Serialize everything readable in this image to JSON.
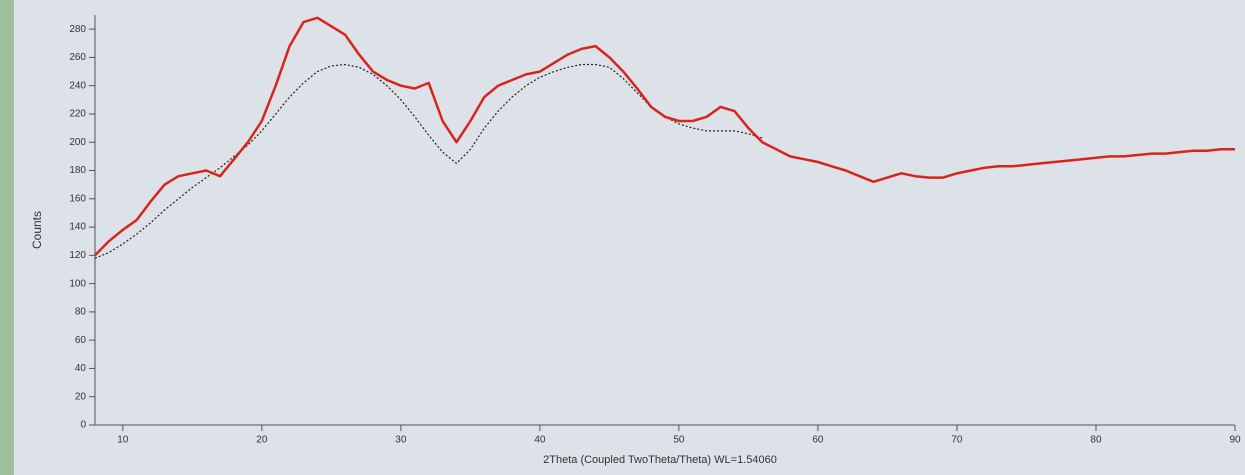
{
  "chart_data": {
    "type": "line",
    "y_label": "Counts",
    "x_label": "2Theta (Coupled TwoTheta/Theta) WL=1.54060",
    "x": [
      8,
      9,
      10,
      11,
      12,
      13,
      14,
      15,
      16,
      17,
      18,
      19,
      20,
      21,
      22,
      23,
      24,
      25,
      26,
      27,
      28,
      29,
      30,
      31,
      32,
      33,
      34,
      35,
      36,
      37,
      38,
      39,
      40,
      41,
      42,
      43,
      44,
      45,
      46,
      47,
      48,
      49,
      50,
      51,
      52,
      53,
      54,
      55,
      56,
      57,
      58,
      59,
      60,
      61,
      62,
      63,
      64,
      65,
      66,
      67,
      68,
      69,
      70,
      71,
      72,
      73,
      74,
      75,
      76,
      77,
      78,
      79,
      80,
      81,
      82,
      83,
      84,
      85,
      86,
      87,
      88,
      89,
      90
    ],
    "series": [
      {
        "color": "#d8241c",
        "dash": "solid",
        "values": [
          120,
          130,
          138,
          145,
          158,
          170,
          176,
          178,
          180,
          176,
          188,
          200,
          215,
          240,
          268,
          285,
          288,
          282,
          276,
          262,
          250,
          244,
          240,
          238,
          242,
          215,
          200,
          215,
          232,
          240,
          244,
          248,
          250,
          256,
          262,
          266,
          268,
          260,
          250,
          238,
          225,
          218,
          215,
          215,
          218,
          225,
          222,
          210,
          200,
          195,
          190,
          188,
          186,
          183,
          180,
          176,
          172,
          175,
          178,
          176,
          175,
          175,
          178,
          180,
          182,
          183,
          183,
          184,
          185,
          186,
          187,
          188,
          189,
          190,
          190,
          191,
          192,
          192,
          193,
          194,
          194,
          195,
          195
        ]
      },
      {
        "color": "#222222",
        "dash": "dotted",
        "values": [
          118,
          122,
          128,
          135,
          143,
          152,
          160,
          168,
          175,
          182,
          190,
          198,
          208,
          220,
          232,
          242,
          250,
          254,
          255,
          253,
          248,
          240,
          230,
          218,
          205,
          193,
          185,
          195,
          210,
          222,
          232,
          240,
          246,
          250,
          253,
          255,
          255,
          253,
          245,
          235,
          225,
          218,
          213,
          210,
          208,
          208,
          208,
          206,
          203,
          null,
          null,
          null,
          null,
          null,
          null,
          null,
          null,
          null,
          null,
          null,
          null,
          null,
          null,
          null,
          null,
          null,
          null,
          null,
          null,
          null,
          null,
          null,
          null,
          null,
          null,
          null,
          null,
          null,
          null,
          null,
          null,
          null,
          null
        ]
      }
    ],
    "xlim": [
      8,
      90
    ],
    "xticks": [
      10,
      20,
      30,
      40,
      50,
      60,
      70,
      80,
      90
    ],
    "ylim": [
      0,
      290
    ],
    "yticks": [
      0,
      20,
      40,
      60,
      80,
      100,
      120,
      140,
      160,
      180,
      200,
      220,
      240,
      260,
      280
    ]
  }
}
